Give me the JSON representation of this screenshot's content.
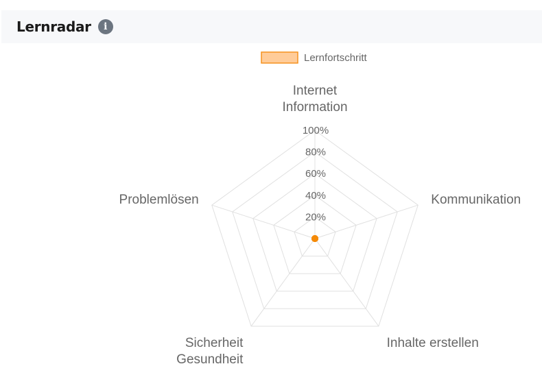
{
  "panel": {
    "title": "Lernradar",
    "info_icon": "info-icon"
  },
  "colors": {
    "series_fill": "#ffcc99",
    "series_stroke": "#f5921e",
    "point": "#f58a07",
    "grid": "#e0e0e0",
    "text": "#666666"
  },
  "chart_data": {
    "type": "radar",
    "title": "",
    "legend": {
      "position": "top",
      "entries": [
        "Lernfortschritt"
      ]
    },
    "axes": [
      [
        "Internet",
        "Information"
      ],
      [
        "Kommunikation"
      ],
      [
        "Inhalte erstellen"
      ],
      [
        "Sicherheit",
        "Gesundheit"
      ],
      [
        "Problemlösen"
      ]
    ],
    "range": [
      0,
      100
    ],
    "ticks": [
      "20%",
      "40%",
      "60%",
      "80%",
      "100%"
    ],
    "tick_values": [
      20,
      40,
      60,
      80,
      100
    ],
    "grid": true,
    "series": [
      {
        "name": "Lernfortschritt",
        "values": [
          0,
          0,
          0,
          0,
          0
        ]
      }
    ]
  }
}
